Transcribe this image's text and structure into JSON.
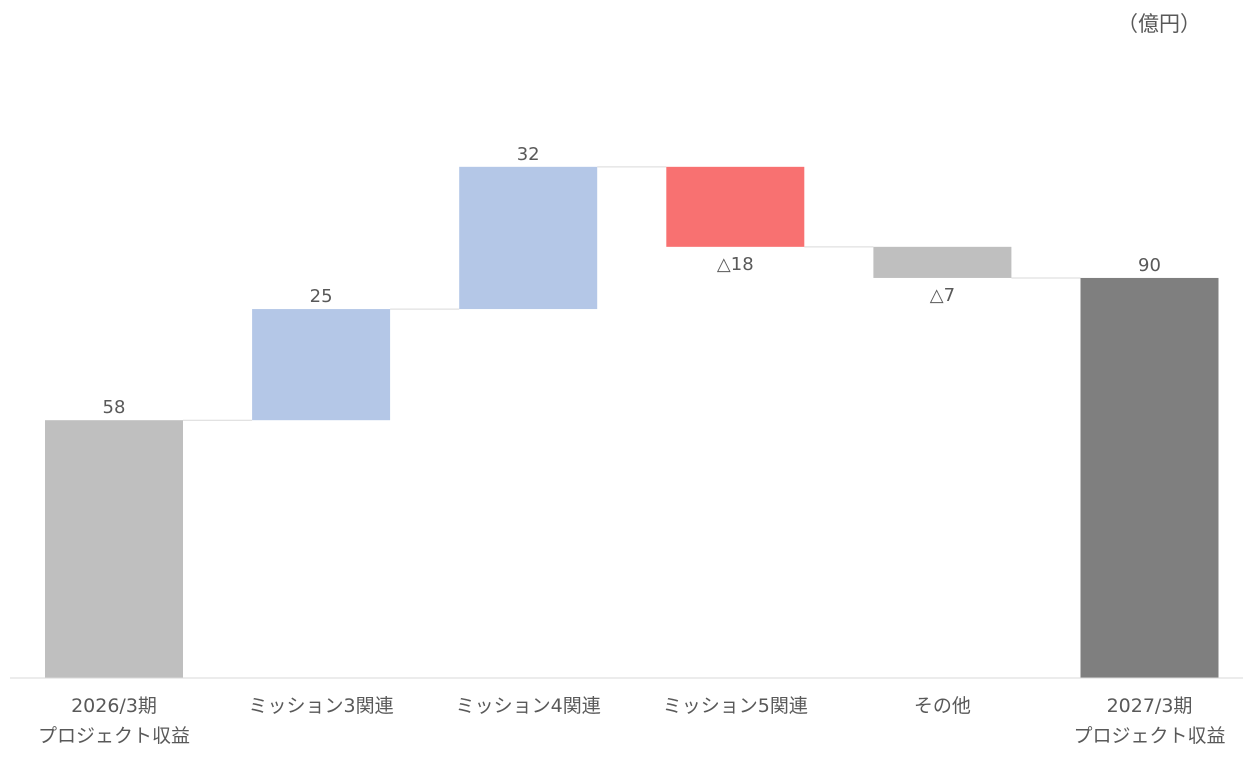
{
  "unit_label": "（億円）",
  "colors": {
    "start": "#bfbfbf",
    "increase": "#b4c7e7",
    "decrease": "#f87171",
    "other": "#bfbfbf",
    "end": "#7f7f7f",
    "text": "#595959",
    "axis": "#d9d9d9",
    "connector": "#d9d9d9"
  },
  "chart_data": {
    "type": "bar",
    "subtype": "waterfall",
    "title": "",
    "xlabel": "",
    "ylabel": "",
    "ylim": [
      0,
      100
    ],
    "grid": false,
    "legend": "none",
    "categories": [
      [
        "2026/3期",
        "プロジェクト収益"
      ],
      [
        "ミッション3関連"
      ],
      [
        "ミッション4関連"
      ],
      [
        "ミッション5関連"
      ],
      [
        "その他"
      ],
      [
        "2027/3期",
        "プロジェクト収益"
      ]
    ],
    "values": [
      58,
      25,
      32,
      -18,
      -7,
      90
    ],
    "kinds": [
      "total",
      "increase",
      "increase",
      "decrease",
      "other",
      "total"
    ],
    "data_labels": [
      "58",
      "25",
      "32",
      "△18",
      "△7",
      "90"
    ]
  }
}
